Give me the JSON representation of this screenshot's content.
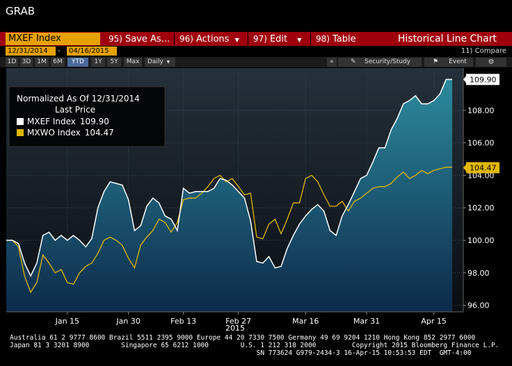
{
  "screen_title": "GRAB",
  "toolbar": {
    "ticker": "MXEF Index",
    "save": {
      "num": "95)",
      "label": "Save As..."
    },
    "actions": {
      "num": "96)",
      "label": "Actions"
    },
    "edit": {
      "num": "97)",
      "label": "Edit"
    },
    "table": {
      "num": "98)",
      "label": "Table"
    },
    "view_title": "Historical Line Chart"
  },
  "dates": {
    "start": "12/31/2014",
    "end": "04/16/2015",
    "dash": "-"
  },
  "compare_label": "11) Compare",
  "periods": [
    "1D",
    "3D",
    "1M",
    "6M",
    "YTD",
    "1Y",
    "5Y",
    "Max"
  ],
  "active_period": "YTD",
  "frequency": "Daily",
  "right_buttons": {
    "collapse": "«",
    "security": "Security/Study",
    "event": "Event"
  },
  "colors": {
    "accent_red": "#a0000e",
    "amber": "#e6a100",
    "mxef": "#ffffff",
    "mxwo": "#e2b800",
    "fill_top": "#2c8a9e",
    "fill_bottom": "#0d2a4a"
  },
  "chart_data": {
    "type": "line",
    "legend": {
      "title": "Normalized As Of 12/31/2014",
      "subtitle": "Last Price",
      "placement": "top-left"
    },
    "x_ticks": [
      "Jan 15",
      "Jan 30",
      "Feb 13",
      "Feb 27",
      "Mar 16",
      "Mar 31",
      "Apr 15"
    ],
    "x_year": "2015",
    "y_ticks": [
      "96.00",
      "98.00",
      "100.00",
      "102.00",
      "104.00",
      "106.00",
      "108.00"
    ],
    "ylim": [
      95.6,
      110.6
    ],
    "x_range": [
      0,
      73
    ],
    "series": [
      {
        "name": "MXEF Index",
        "last": "109.90",
        "color": "#ffffff",
        "filled": true,
        "x": [
          0,
          1,
          2,
          3,
          4,
          5,
          6,
          7,
          8,
          9,
          10,
          11,
          12,
          13,
          14,
          15,
          16,
          17,
          18,
          19,
          20,
          21,
          22,
          23,
          24,
          25,
          26,
          27,
          28,
          29,
          30,
          31,
          32,
          33,
          34,
          35,
          36,
          37,
          38,
          39,
          40,
          41,
          42,
          43,
          44,
          45,
          46,
          47,
          48,
          49,
          50,
          51,
          52,
          53,
          54,
          55,
          56,
          57,
          58,
          59,
          60,
          61,
          62,
          63,
          64,
          65,
          66,
          67,
          68,
          69,
          70,
          71,
          72,
          73
        ],
        "values": [
          100.0,
          100.0,
          99.8,
          98.6,
          97.8,
          98.6,
          100.3,
          100.5,
          100.0,
          100.3,
          100.0,
          100.3,
          100.0,
          99.6,
          100.1,
          102.0,
          103.0,
          103.6,
          103.5,
          103.4,
          102.5,
          100.6,
          100.9,
          102.1,
          102.6,
          102.3,
          101.5,
          101.3,
          100.6,
          103.2,
          102.9,
          103.0,
          103.0,
          103.0,
          103.2,
          103.8,
          103.7,
          103.4,
          103.0,
          102.6,
          101.2,
          98.7,
          98.6,
          99.0,
          98.3,
          98.4,
          99.5,
          100.3,
          101.0,
          101.5,
          101.9,
          102.2,
          101.8,
          100.6,
          100.3,
          101.5,
          102.2,
          103.0,
          103.8,
          104.0,
          104.8,
          105.7,
          105.7,
          106.8,
          107.5,
          108.4,
          108.6,
          108.9,
          108.4,
          108.4,
          108.6,
          109.0,
          109.9,
          109.9
        ]
      },
      {
        "name": "MXWO Index",
        "last": "104.47",
        "color": "#e2b800",
        "filled": false,
        "x": [
          0,
          1,
          2,
          3,
          4,
          5,
          6,
          7,
          8,
          9,
          10,
          11,
          12,
          13,
          14,
          15,
          16,
          17,
          18,
          19,
          20,
          21,
          22,
          23,
          24,
          25,
          26,
          27,
          28,
          29,
          30,
          31,
          32,
          33,
          34,
          35,
          36,
          37,
          38,
          39,
          40,
          41,
          42,
          43,
          44,
          45,
          46,
          47,
          48,
          49,
          50,
          51,
          52,
          53,
          54,
          55,
          56,
          57,
          58,
          59,
          60,
          61,
          62,
          63,
          64,
          65,
          66,
          67,
          68,
          69,
          70,
          71,
          72,
          73
        ],
        "values": [
          100.0,
          100.0,
          99.6,
          97.8,
          96.8,
          97.4,
          99.1,
          98.6,
          98.0,
          98.2,
          97.4,
          97.3,
          98.0,
          98.4,
          98.6,
          99.2,
          100.0,
          100.2,
          100.0,
          99.7,
          98.9,
          98.3,
          99.7,
          100.2,
          100.6,
          101.3,
          101.1,
          100.5,
          101.1,
          102.5,
          102.6,
          102.6,
          102.9,
          103.3,
          103.8,
          104.0,
          103.6,
          103.8,
          103.3,
          102.8,
          102.9,
          100.2,
          100.1,
          101.0,
          101.3,
          100.4,
          101.3,
          102.3,
          102.3,
          103.8,
          104.0,
          103.6,
          102.8,
          102.1,
          102.1,
          102.4,
          101.8,
          102.4,
          102.6,
          102.9,
          103.2,
          103.3,
          103.3,
          103.5,
          103.9,
          104.2,
          103.8,
          104.0,
          104.3,
          104.1,
          104.3,
          104.4,
          104.5,
          104.5
        ]
      }
    ]
  },
  "footer": {
    "line1": "Australia 61 2 9777 8600 Brazil 5511 2395 9000 Europe 44 20 7330 7500 Germany 49 69 9204 1210 Hong Kong 852 2977 6000",
    "line2": "Japan 81 3 3201 8900        Singapore 65 6212 1000        U.S. 1 212 318 2000         Copyright 2015 Bloomberg Finance L.P.",
    "line3": "                                                              SN 773624 G979-2434-3 16-Apr-15 10:53:53 EDT  GMT-4:00"
  }
}
